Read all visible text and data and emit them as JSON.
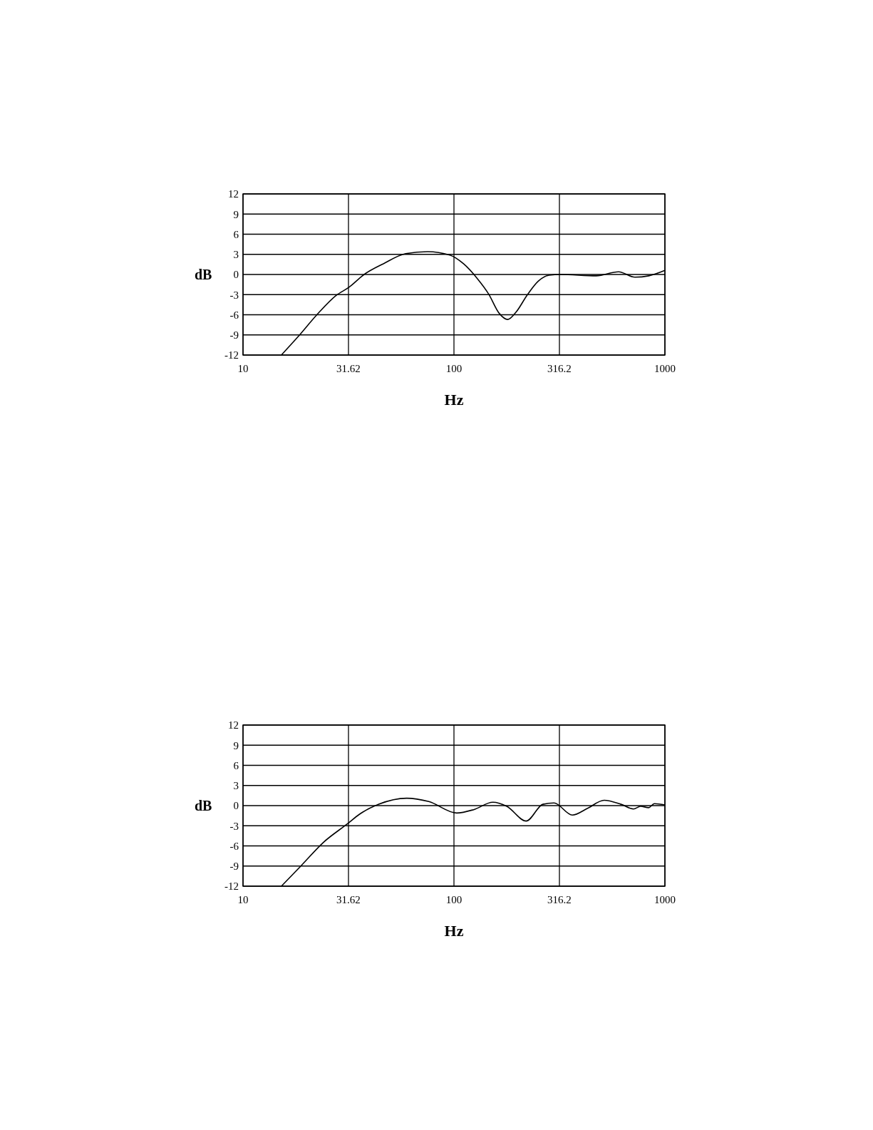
{
  "chart_data": [
    {
      "type": "line",
      "xlabel": "Hz",
      "ylabel": "dB",
      "log": "x",
      "grid": true,
      "xlim": [
        10,
        1000
      ],
      "xticks": [
        10,
        31.62,
        100,
        316.2,
        1000
      ],
      "ylim": [
        -12,
        12
      ],
      "yticks": [
        -12,
        -9,
        -6,
        -3,
        0,
        3,
        6,
        9,
        12
      ],
      "series": [
        {
          "color": "#000000",
          "x": [
            15.2,
            18.2,
            22.4,
            27.7,
            31.8,
            37.5,
            46.3,
            59,
            75,
            95.5,
            111,
            129,
            146,
            164,
            180,
            197,
            222,
            251,
            283,
            320,
            473,
            603,
            721,
            839,
            1000
          ],
          "values": [
            -12,
            -9.3,
            -6,
            -3.1,
            -1.9,
            0,
            1.6,
            3.1,
            3.4,
            2.9,
            1.6,
            -0.6,
            -2.9,
            -5.8,
            -6.7,
            -5.6,
            -3.1,
            -1,
            -0.1,
            0,
            -0.2,
            0.4,
            -0.4,
            -0.2,
            0.6
          ]
        }
      ]
    },
    {
      "type": "line",
      "xlabel": "Hz",
      "ylabel": "dB",
      "log": "x",
      "grid": true,
      "xlim": [
        10,
        1000
      ],
      "xticks": [
        10,
        31.62,
        100,
        316.2,
        1000
      ],
      "ylim": [
        -12,
        12
      ],
      "yticks": [
        -12,
        -9,
        -6,
        -3,
        0,
        3,
        6,
        9,
        12
      ],
      "series": [
        {
          "color": "#000000",
          "x": [
            15.2,
            18.8,
            24,
            31.3,
            35.6,
            44,
            59.7,
            76,
            103,
            124,
            153,
            178,
            220,
            264,
            298,
            364,
            430,
            515,
            619,
            710,
            766,
            838,
            891,
            1000
          ],
          "values": [
            -12,
            -9,
            -5.5,
            -2.7,
            -1.3,
            0.2,
            1.1,
            0.6,
            -1.1,
            -0.6,
            0.5,
            -0.1,
            -2.3,
            0.2,
            0.4,
            -1.4,
            -0.4,
            0.8,
            0.2,
            -0.5,
            -0.1,
            -0.3,
            0.3,
            0.1
          ]
        }
      ]
    }
  ]
}
